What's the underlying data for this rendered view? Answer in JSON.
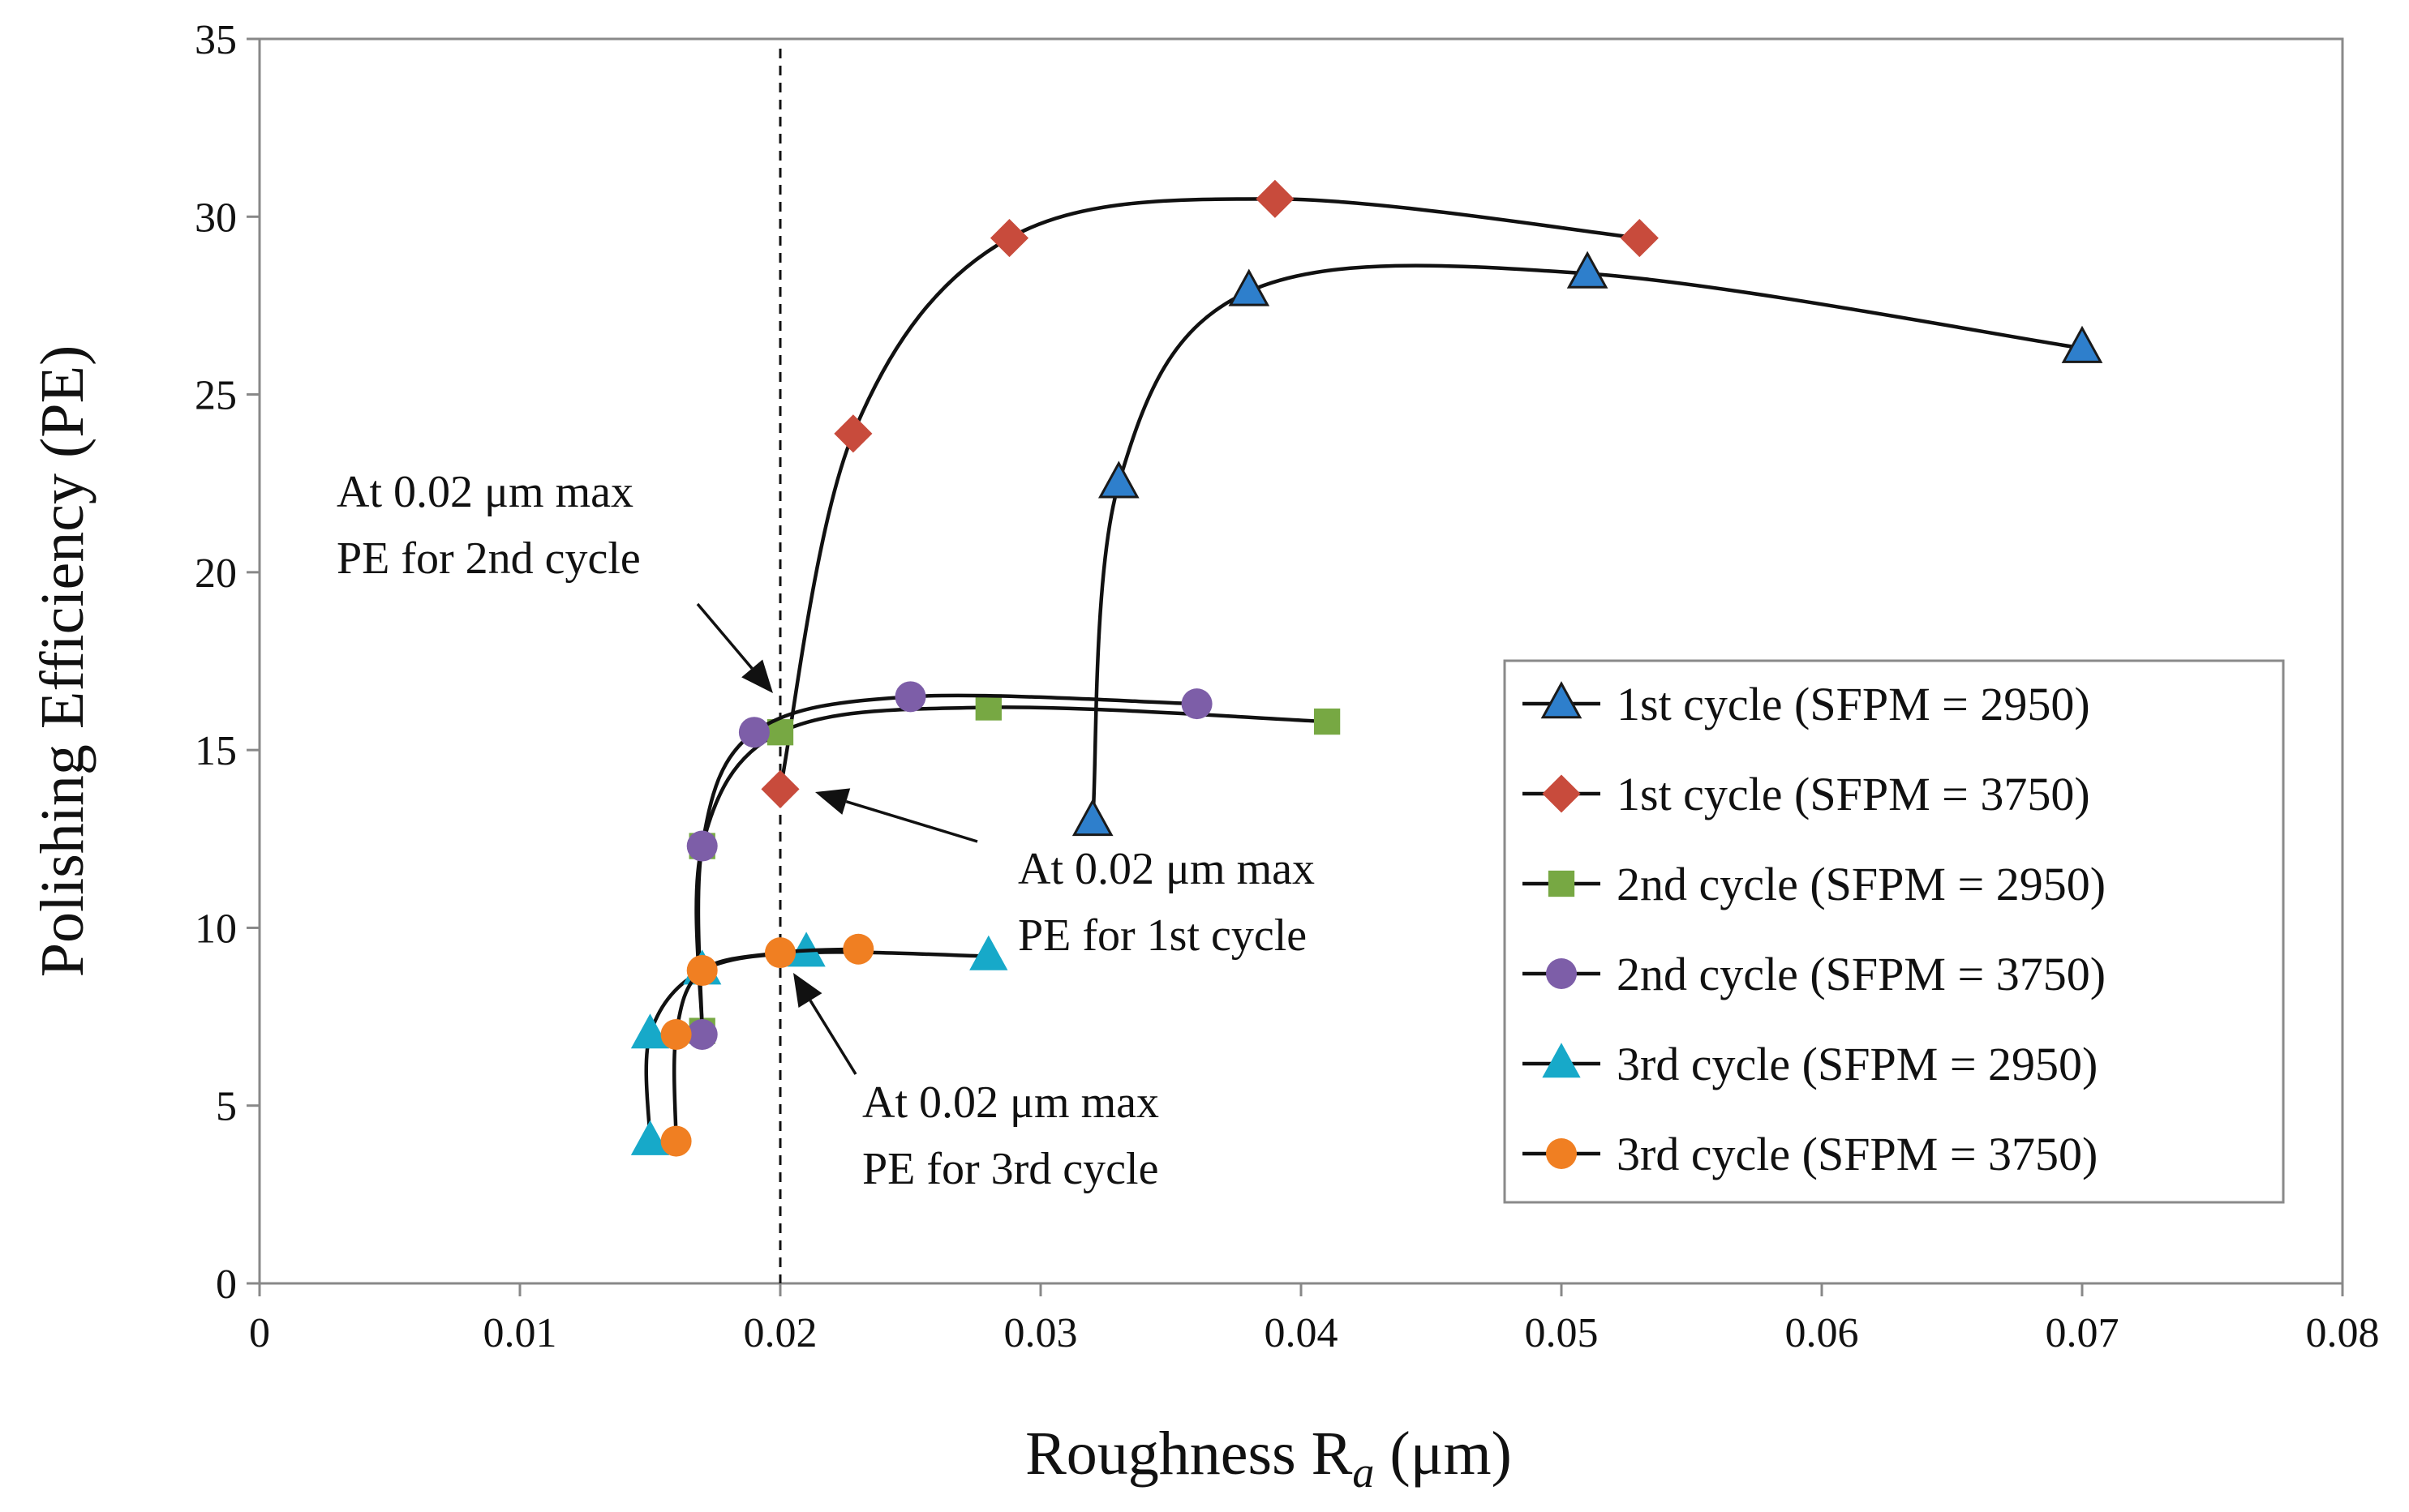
{
  "chart_data": {
    "type": "scatter",
    "title": "",
    "xlabel": "Roughness R",
    "xlabel_sub": "a",
    "xlabel_unit": " (μm)",
    "ylabel": "Polishing Efficiency (PE)",
    "xlim": [
      0,
      0.08
    ],
    "ylim": [
      0,
      35
    ],
    "xticks": [
      "0",
      "0.01",
      "0.02",
      "0.03",
      "0.04",
      "0.05",
      "0.06",
      "0.07",
      "0.08"
    ],
    "yticks": [
      "0",
      "5",
      "10",
      "15",
      "20",
      "25",
      "30",
      "35"
    ],
    "grid": false,
    "legend_position": "lower-right",
    "reference_line": {
      "x": 0.02,
      "style": "dashed"
    },
    "series": [
      {
        "name": "1st cycle (SFPM = 2950)",
        "marker": "triangle-outline",
        "color": "#2E7FCC",
        "x": [
          0.032,
          0.033,
          0.038,
          0.051,
          0.07
        ],
        "y": [
          13.0,
          22.5,
          27.9,
          28.4,
          26.3
        ]
      },
      {
        "name": "1st cycle (SFPM = 3750)",
        "marker": "diamond",
        "color": "#C84B3C",
        "x": [
          0.02,
          0.0228,
          0.0288,
          0.039,
          0.053
        ],
        "y": [
          13.9,
          23.9,
          29.4,
          30.5,
          29.4
        ]
      },
      {
        "name": "2nd cycle (SFPM = 2950)",
        "marker": "square",
        "color": "#77A843",
        "x": [
          0.017,
          0.017,
          0.02,
          0.028,
          0.041
        ],
        "y": [
          7.1,
          12.3,
          15.5,
          16.2,
          15.8
        ]
      },
      {
        "name": "2nd cycle (SFPM = 3750)",
        "marker": "circle",
        "color": "#7D5EA8",
        "x": [
          0.017,
          0.017,
          0.019,
          0.025,
          0.036
        ],
        "y": [
          7.0,
          12.3,
          15.5,
          16.5,
          16.3
        ]
      },
      {
        "name": "3rd cycle (SFPM = 2950)",
        "marker": "triangle",
        "color": "#17A9C9",
        "x": [
          0.015,
          0.015,
          0.017,
          0.021,
          0.028
        ],
        "y": [
          4.0,
          7.0,
          8.8,
          9.3,
          9.2
        ]
      },
      {
        "name": "3rd cycle  (SFPM = 3750)",
        "marker": "circle",
        "color": "#F07F22",
        "x": [
          0.016,
          0.016,
          0.017,
          0.02,
          0.023
        ],
        "y": [
          4.0,
          7.0,
          8.8,
          9.3,
          9.4
        ]
      }
    ],
    "annotations": [
      {
        "lines": [
          "At 0.02 μm max",
          "PE for 2nd cycle"
        ],
        "target": {
          "x": 0.02,
          "y": 15.5
        }
      },
      {
        "lines": [
          "At 0.02 μm max",
          "PE for 1st cycle"
        ],
        "target": {
          "x": 0.0202,
          "y": 13.9
        }
      },
      {
        "lines": [
          "At 0.02 μm max",
          "PE for 3rd cycle"
        ],
        "target": {
          "x": 0.0203,
          "y": 9.2
        }
      }
    ]
  }
}
